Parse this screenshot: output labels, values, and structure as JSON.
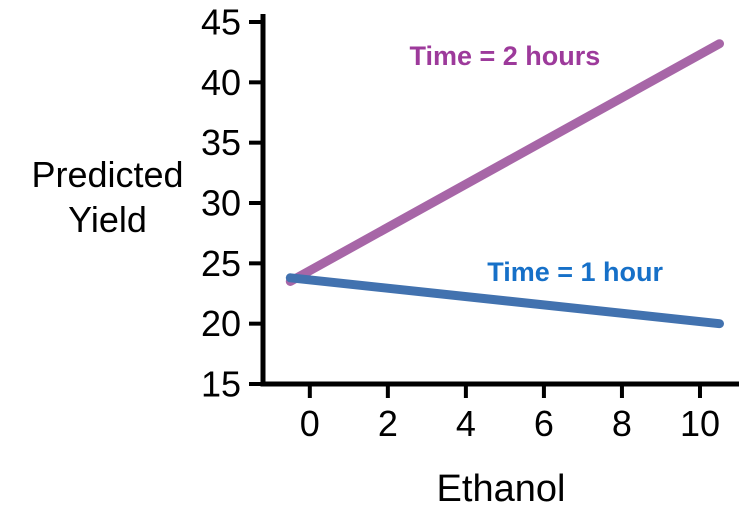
{
  "chart_data": {
    "type": "line",
    "title": "",
    "xlabel": "Ethanol",
    "ylabel": "Predicted Yield",
    "ylabel_line1": "Predicted",
    "ylabel_line2": "Yield",
    "xlim": [
      -1.2,
      11.0
    ],
    "ylim": [
      15,
      45
    ],
    "x_ticks": [
      0,
      2,
      4,
      6,
      8,
      10
    ],
    "y_ticks": [
      15,
      20,
      25,
      30,
      35,
      40,
      45
    ],
    "grid": false,
    "legend_position": "inline-annotations",
    "axis_color": "#000000",
    "series": [
      {
        "name": "Time = 2 hours",
        "line_color": "#a766a7",
        "label_color": "#9d3a9b",
        "x": [
          -0.5,
          10.5
        ],
        "y": [
          23.5,
          43.2
        ],
        "label_x": 5.0,
        "label_y": 42.2
      },
      {
        "name": "Time = 1 hour",
        "line_color": "#4272af",
        "label_color": "#1670c8",
        "x": [
          -0.5,
          10.5
        ],
        "y": [
          23.8,
          20.0
        ],
        "label_x": 6.8,
        "label_y": 24.3
      }
    ]
  }
}
